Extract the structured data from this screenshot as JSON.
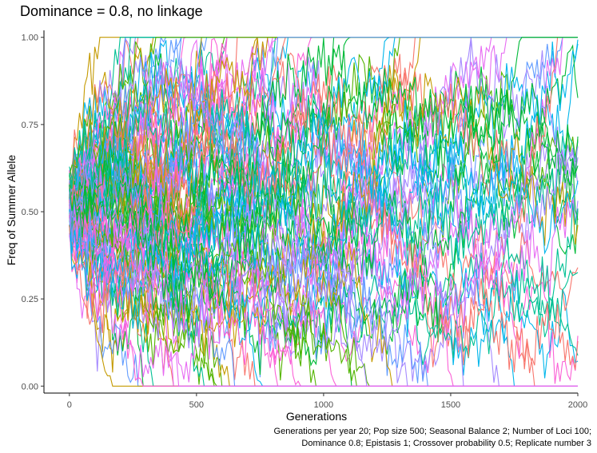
{
  "chart_data": {
    "type": "line",
    "title": "Dominance = 0.8, no linkage",
    "xlabel": "Generations",
    "ylabel": "Freq of Summer Allele",
    "xlim": [
      -100,
      2000
    ],
    "ylim": [
      -0.02,
      1.02
    ],
    "x_ticks": [
      0,
      500,
      1000,
      1500,
      2000
    ],
    "x_tick_labels": [
      "0",
      "500",
      "1000",
      "1500",
      "2000"
    ],
    "y_ticks": [
      0,
      0.25,
      0.5,
      0.75,
      1.0
    ],
    "y_tick_labels": [
      "0.00",
      "0.25",
      "0.50",
      "0.75",
      "1.00"
    ],
    "grid": false,
    "legend": "none",
    "series_count": 100,
    "generations_start": 0,
    "generations_end": 2000,
    "start_frequency": 0.5,
    "seasonal_period": 20,
    "colors": [
      "#F8766D",
      "#C49A00",
      "#53B400",
      "#00C094",
      "#00B6EB",
      "#A58AFF",
      "#FB61D7",
      "#E76BF3",
      "#619CFF",
      "#00BA38"
    ],
    "caption_lines": [
      "Generations per year 20; Pop size 500; Seasonal Balance 2; Number of Loci 100;",
      "Dominance 0.8; Epistasis 1; Crossover probability 0.5; Replicate number 3"
    ]
  }
}
